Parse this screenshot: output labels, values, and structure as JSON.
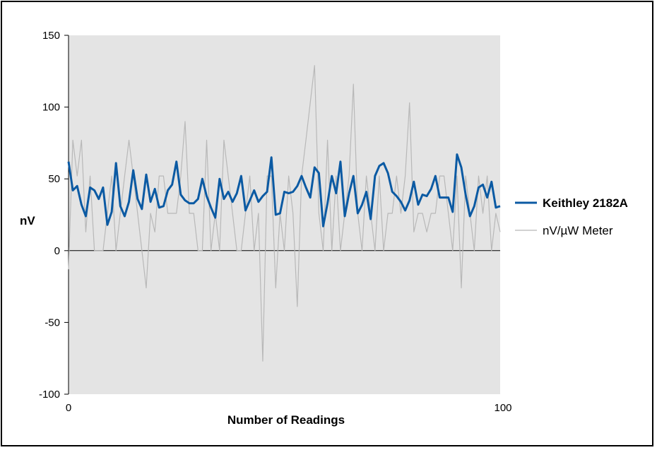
{
  "chart_data": {
    "type": "line",
    "title": "",
    "xlabel": "Number of Readings",
    "ylabel": "nV",
    "xlim": [
      0,
      100
    ],
    "ylim": [
      -100,
      150
    ],
    "x_ticks": [
      {
        "value": 0,
        "label": "0"
      },
      {
        "value": 100,
        "label": "100"
      }
    ],
    "y_ticks": [
      {
        "value": 150,
        "label": "150"
      },
      {
        "value": 100,
        "label": "100"
      },
      {
        "value": 50,
        "label": "50"
      },
      {
        "value": 0,
        "label": "0"
      },
      {
        "value": -50,
        "label": "-50"
      },
      {
        "value": -100,
        "label": "-100"
      }
    ],
    "grid": false,
    "legend_position": "right",
    "plot_background": "#e4e4e4",
    "series": [
      {
        "name": "Keithley 2182A",
        "color": "#0b5aa3",
        "values": [
          62,
          42,
          45,
          32,
          24,
          44,
          42,
          36,
          44,
          18,
          27,
          61,
          31,
          24,
          34,
          56,
          36,
          29,
          53,
          34,
          43,
          30,
          31,
          42,
          46,
          62,
          39,
          35,
          33,
          33,
          36,
          50,
          38,
          30,
          23,
          50,
          36,
          41,
          34,
          40,
          52,
          28,
          35,
          42,
          34,
          38,
          41,
          65,
          25,
          26,
          41,
          40,
          41,
          45,
          52,
          44,
          37,
          58,
          54,
          17,
          33,
          52,
          40,
          62,
          24,
          40,
          52,
          26,
          32,
          41,
          22,
          52,
          59,
          61,
          54,
          41,
          38,
          34,
          28,
          35,
          48,
          32,
          39,
          38,
          43,
          52,
          37,
          37,
          37,
          27,
          67,
          58,
          39,
          24,
          31,
          44,
          46,
          37,
          48,
          30,
          31
        ]
      },
      {
        "name": "nV/µW Meter",
        "color": "#b8b8b8",
        "values": [
          -13,
          77,
          52,
          77,
          13,
          52,
          0,
          0,
          0,
          26,
          52,
          0,
          26,
          52,
          77,
          52,
          26,
          0,
          -26,
          26,
          13,
          52,
          52,
          26,
          26,
          26,
          52,
          90,
          26,
          26,
          0,
          0,
          77,
          0,
          26,
          0,
          77,
          52,
          26,
          0,
          0,
          26,
          52,
          0,
          26,
          -77,
          52,
          52,
          -26,
          26,
          0,
          52,
          26,
          -39,
          52,
          77,
          103,
          129,
          26,
          0,
          77,
          0,
          52,
          0,
          26,
          52,
          116,
          26,
          0,
          52,
          26,
          0,
          52,
          0,
          26,
          26,
          52,
          26,
          52,
          103,
          13,
          26,
          26,
          13,
          26,
          26,
          52,
          52,
          26,
          0,
          52,
          -26,
          52,
          26,
          0,
          52,
          26,
          52,
          0,
          26,
          13
        ]
      }
    ]
  }
}
